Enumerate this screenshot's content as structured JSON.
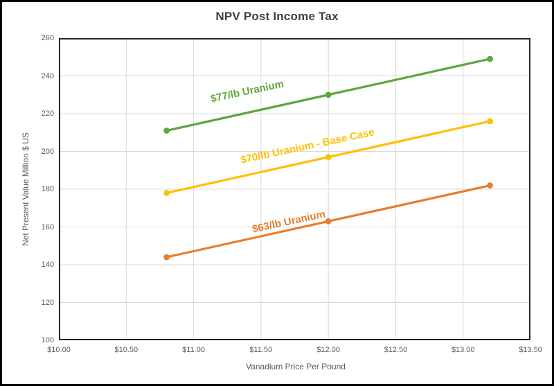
{
  "chart_data": {
    "type": "line",
    "title": "NPV Post Income Tax",
    "xlabel": "Vanadium Price Per Pound",
    "ylabel": "Net Present Value Million $ US",
    "x": [
      10.8,
      12.0,
      13.2
    ],
    "series": [
      {
        "name": "$77/lb Uranium",
        "color": "#5FA53D",
        "values": [
          211,
          230,
          249
        ]
      },
      {
        "name": "$70/lb Uranium - Base Case",
        "color": "#FFC000",
        "values": [
          178,
          197,
          216
        ]
      },
      {
        "name": "$63/lb Uranium",
        "color": "#E87E2D",
        "values": [
          144,
          163,
          182
        ]
      }
    ],
    "xlim": [
      10.0,
      13.5
    ],
    "ylim": [
      100,
      260
    ],
    "x_ticks": [
      {
        "label": "$10.00",
        "value": 10.0
      },
      {
        "label": "$10.50",
        "value": 10.5
      },
      {
        "label": "$11.00",
        "value": 11.0
      },
      {
        "label": "$11.50",
        "value": 11.5
      },
      {
        "label": "$12.00",
        "value": 12.0
      },
      {
        "label": "$12.50",
        "value": 12.5
      },
      {
        "label": "$13.00",
        "value": 13.0
      },
      {
        "label": "$13.50",
        "value": 13.5
      }
    ],
    "y_ticks": [
      {
        "label": "100",
        "value": 100
      },
      {
        "label": "120",
        "value": 120
      },
      {
        "label": "140",
        "value": 140
      },
      {
        "label": "160",
        "value": 160
      },
      {
        "label": "180",
        "value": 180
      },
      {
        "label": "200",
        "value": 200
      },
      {
        "label": "220",
        "value": 220
      },
      {
        "label": "240",
        "value": 240
      },
      {
        "label": "260",
        "value": 260
      }
    ],
    "grid": true,
    "legend_position": "inline-labels"
  },
  "colors": {
    "gridline": "#D9D9D9",
    "plot_border": "#262626",
    "frame_border": "#000000",
    "title_text": "#404040",
    "axis_text": "#595959",
    "background": "#FFFFFF"
  }
}
